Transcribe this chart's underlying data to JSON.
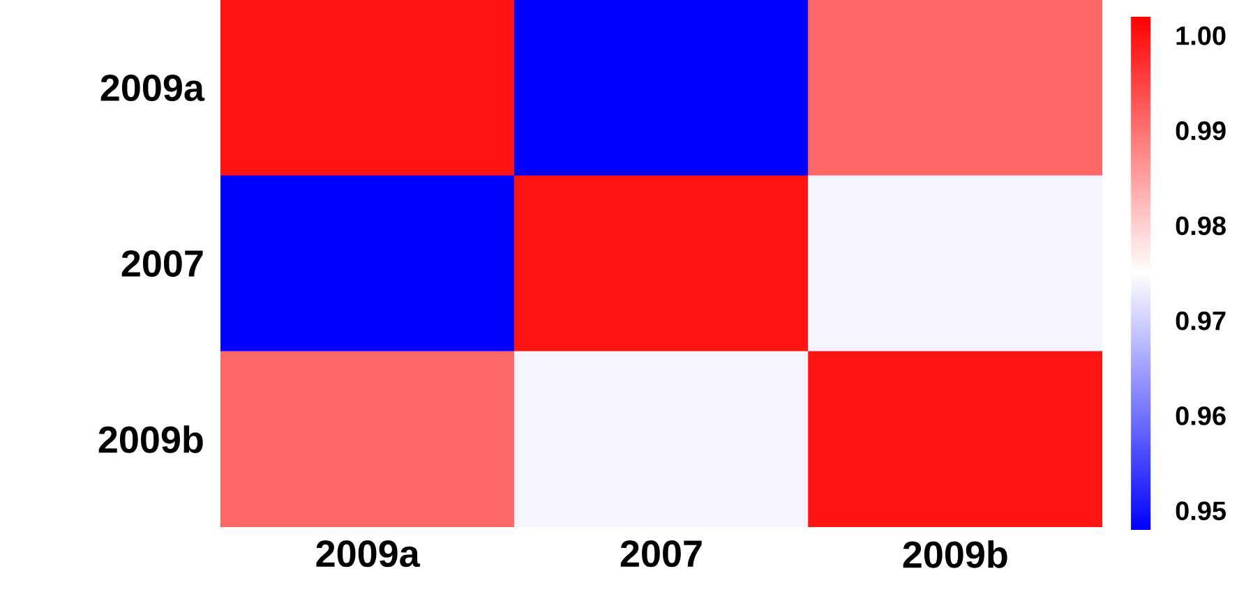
{
  "chart_data": {
    "type": "heatmap",
    "categories": [
      "2009a",
      "2007",
      "2009b"
    ],
    "y_categories": [
      "2009a",
      "2007",
      "2009b"
    ],
    "cells": [
      [
        1.0,
        0.948,
        0.991
      ],
      [
        0.948,
        1.0,
        0.974
      ],
      [
        0.991,
        0.974,
        1.0
      ]
    ],
    "clim": [
      0.948,
      1.002
    ],
    "cticks": [
      0.95,
      0.96,
      0.97,
      0.98,
      0.99,
      {
        "value": 1.0,
        "label": "1.00"
      }
    ]
  }
}
